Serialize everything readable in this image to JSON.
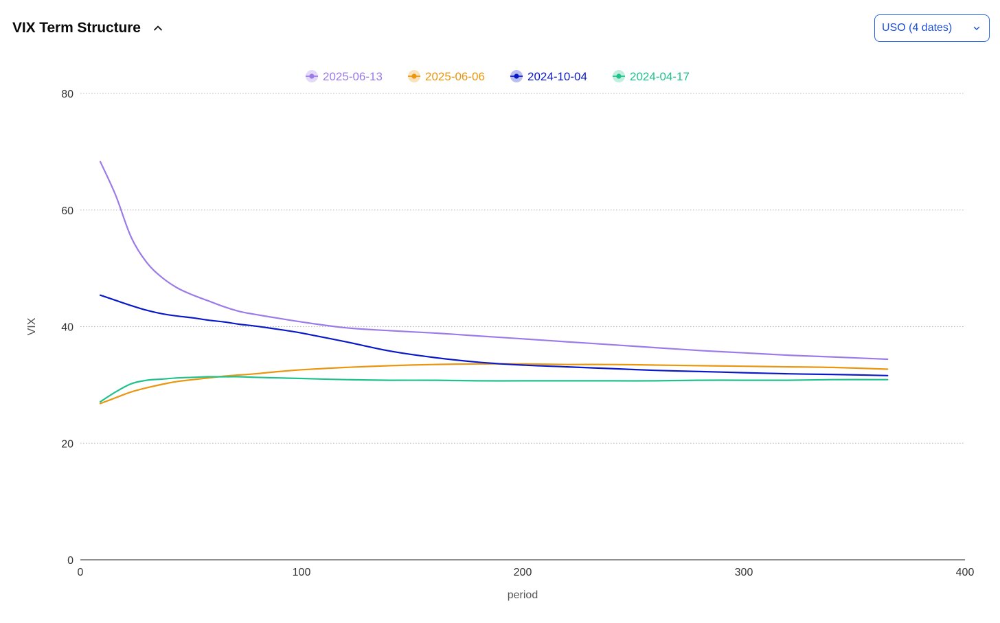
{
  "header": {
    "title": "VIX Term Structure",
    "collapse_icon": "chevron-up-icon"
  },
  "selector": {
    "label": "USO (4 dates)",
    "icon": "chevron-down-icon",
    "accent_color": "#2563eb"
  },
  "chart_data": {
    "type": "line",
    "title": "",
    "xlabel": "period",
    "ylabel": "VIX",
    "xlim": [
      0,
      400
    ],
    "ylim": [
      0,
      80
    ],
    "xticks": [
      0,
      100,
      200,
      300,
      400
    ],
    "yticks": [
      0,
      20,
      40,
      60,
      80
    ],
    "grid": "horizontal-dotted",
    "legend_position": "top-center",
    "series": [
      {
        "name": "2025-06-13",
        "color": "#9b7be8",
        "x": [
          9,
          16,
          23,
          30,
          37,
          44,
          51,
          58,
          65,
          72,
          79,
          90,
          100,
          120,
          140,
          160,
          180,
          200,
          220,
          240,
          260,
          280,
          300,
          320,
          340,
          365
        ],
        "y": [
          68.3,
          62.5,
          55.3,
          51.0,
          48.4,
          46.6,
          45.4,
          44.4,
          43.4,
          42.6,
          42.1,
          41.4,
          40.8,
          39.8,
          39.3,
          38.9,
          38.4,
          37.9,
          37.4,
          36.9,
          36.4,
          35.9,
          35.5,
          35.1,
          34.8,
          34.4
        ]
      },
      {
        "name": "2025-06-06",
        "color": "#ea960e",
        "x": [
          9,
          16,
          23,
          30,
          37,
          44,
          51,
          58,
          65,
          72,
          79,
          90,
          100,
          120,
          140,
          160,
          180,
          200,
          220,
          240,
          260,
          280,
          300,
          320,
          340,
          365
        ],
        "y": [
          26.8,
          27.8,
          28.8,
          29.5,
          30.1,
          30.6,
          30.9,
          31.2,
          31.5,
          31.7,
          31.9,
          32.3,
          32.6,
          33.0,
          33.3,
          33.5,
          33.6,
          33.6,
          33.5,
          33.5,
          33.4,
          33.3,
          33.2,
          33.1,
          33.0,
          32.7
        ]
      },
      {
        "name": "2024-10-04",
        "color": "#0a19c8",
        "x": [
          9,
          16,
          23,
          30,
          37,
          44,
          51,
          58,
          65,
          72,
          79,
          90,
          100,
          120,
          140,
          160,
          180,
          200,
          220,
          240,
          260,
          280,
          300,
          320,
          340,
          365
        ],
        "y": [
          45.4,
          44.5,
          43.6,
          42.8,
          42.2,
          41.8,
          41.5,
          41.1,
          40.8,
          40.4,
          40.1,
          39.5,
          38.9,
          37.4,
          35.8,
          34.7,
          33.9,
          33.4,
          33.1,
          32.8,
          32.5,
          32.3,
          32.1,
          31.9,
          31.8,
          31.6
        ]
      },
      {
        "name": "2024-04-17",
        "color": "#1fc28c",
        "x": [
          9,
          16,
          23,
          30,
          37,
          44,
          51,
          58,
          65,
          72,
          79,
          90,
          100,
          120,
          140,
          160,
          180,
          200,
          220,
          240,
          260,
          280,
          300,
          320,
          340,
          365
        ],
        "y": [
          27.1,
          28.8,
          30.2,
          30.8,
          31.0,
          31.2,
          31.3,
          31.4,
          31.4,
          31.4,
          31.3,
          31.2,
          31.1,
          30.9,
          30.8,
          30.8,
          30.7,
          30.7,
          30.7,
          30.7,
          30.7,
          30.8,
          30.8,
          30.8,
          30.9,
          30.9
        ]
      }
    ]
  }
}
